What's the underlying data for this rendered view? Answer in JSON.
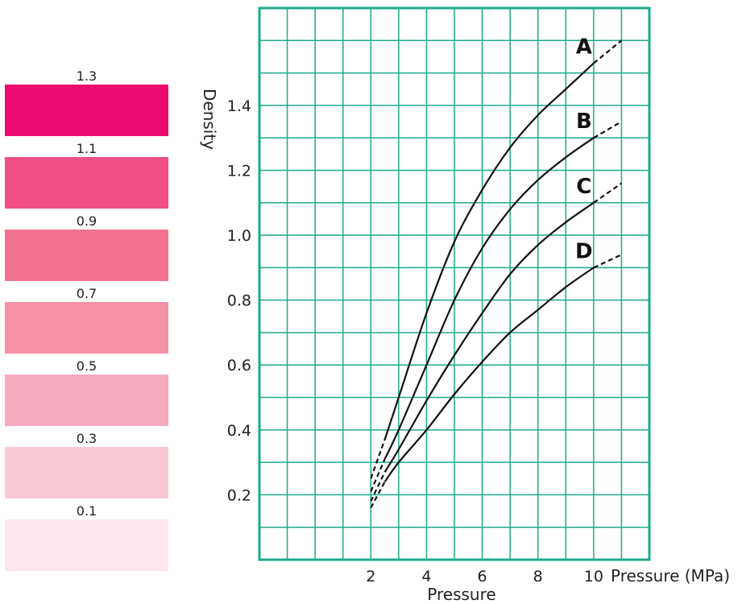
{
  "density_scale": [
    {
      "label": "1.3",
      "color": "#EC0B6E"
    },
    {
      "label": "1.1",
      "color": "#F14E83"
    },
    {
      "label": "0.9",
      "color": "#F2738F"
    },
    {
      "label": "0.7",
      "color": "#F591A6"
    },
    {
      "label": "0.5",
      "color": "#F6AABE"
    },
    {
      "label": "0.3",
      "color": "#FAC9D6"
    },
    {
      "label": "0.1",
      "color": "#FDE6EE"
    }
  ],
  "chart_data": {
    "type": "line",
    "xlabel": "Pressure",
    "xlabel_right": "Pressure (MPa)",
    "ylabel": "Density",
    "xlim": [
      -2,
      12
    ],
    "ylim": [
      0,
      1.7
    ],
    "x_ticks": [
      2,
      4,
      6,
      8,
      10
    ],
    "y_ticks": [
      0.2,
      0.4,
      0.6,
      0.8,
      1.0,
      1.2,
      1.4
    ],
    "x_tick_labels": [
      "2",
      "4",
      "6",
      "8",
      "10"
    ],
    "y_tick_labels": [
      "0.2",
      "0.4",
      "0.6",
      "0.8",
      "1.0",
      "1.2",
      "1.4"
    ],
    "grid": true,
    "grid_color": "#1EAA8C",
    "line_color": "#111111",
    "series": [
      {
        "name": "A",
        "solid": [
          [
            2.5,
            0.37
          ],
          [
            3,
            0.5
          ],
          [
            4,
            0.76
          ],
          [
            5,
            0.98
          ],
          [
            6,
            1.14
          ],
          [
            7,
            1.27
          ],
          [
            8,
            1.37
          ],
          [
            9,
            1.45
          ],
          [
            10,
            1.53
          ]
        ],
        "dashed": [
          [
            2,
            0.25
          ],
          [
            2.5,
            0.37
          ]
        ],
        "dashed_end": [
          [
            10,
            1.53
          ],
          [
            11,
            1.6
          ]
        ]
      },
      {
        "name": "B",
        "solid": [
          [
            2.5,
            0.31
          ],
          [
            3,
            0.4
          ],
          [
            4,
            0.6
          ],
          [
            5,
            0.8
          ],
          [
            6,
            0.96
          ],
          [
            7,
            1.08
          ],
          [
            8,
            1.17
          ],
          [
            9,
            1.24
          ],
          [
            10,
            1.3
          ]
        ],
        "dashed": [
          [
            2,
            0.21
          ],
          [
            2.5,
            0.31
          ]
        ],
        "dashed_end": [
          [
            10,
            1.3
          ],
          [
            11,
            1.35
          ]
        ]
      },
      {
        "name": "C",
        "solid": [
          [
            2.5,
            0.27
          ],
          [
            3,
            0.34
          ],
          [
            4,
            0.49
          ],
          [
            5,
            0.63
          ],
          [
            6,
            0.76
          ],
          [
            7,
            0.88
          ],
          [
            8,
            0.97
          ],
          [
            9,
            1.04
          ],
          [
            10,
            1.1
          ]
        ],
        "dashed": [
          [
            2,
            0.18
          ],
          [
            2.5,
            0.27
          ]
        ],
        "dashed_end": [
          [
            10,
            1.1
          ],
          [
            11,
            1.16
          ]
        ]
      },
      {
        "name": "D",
        "solid": [
          [
            2.5,
            0.24
          ],
          [
            3,
            0.3
          ],
          [
            4,
            0.4
          ],
          [
            5,
            0.51
          ],
          [
            6,
            0.61
          ],
          [
            7,
            0.7
          ],
          [
            8,
            0.77
          ],
          [
            9,
            0.84
          ],
          [
            10,
            0.9
          ]
        ],
        "dashed": [
          [
            2,
            0.16
          ],
          [
            2.5,
            0.24
          ]
        ],
        "dashed_end": [
          [
            10,
            0.9
          ],
          [
            11,
            0.94
          ]
        ]
      }
    ]
  }
}
